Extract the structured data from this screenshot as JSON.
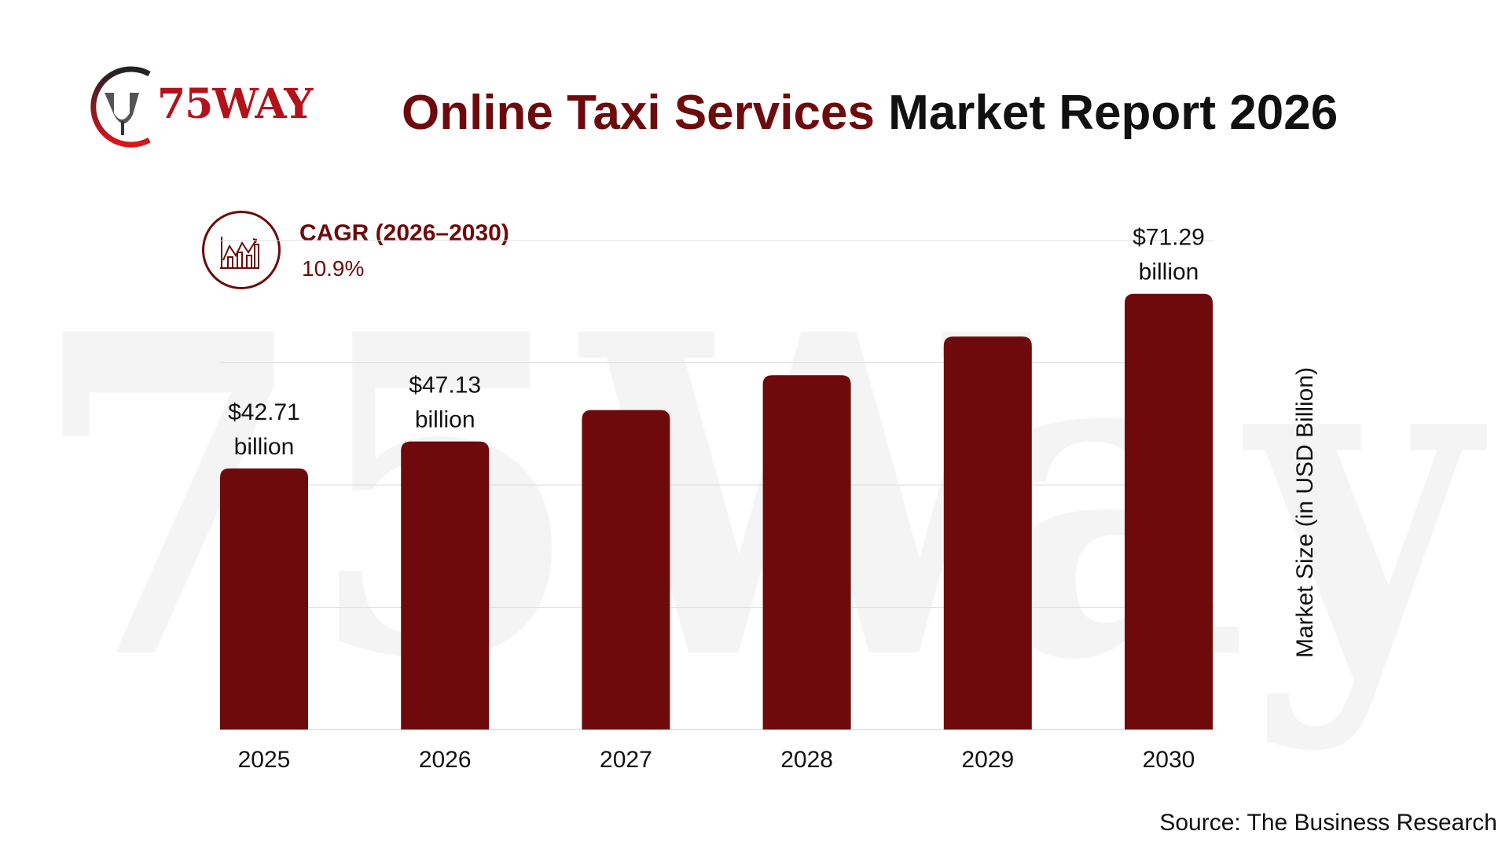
{
  "logo": {
    "text": "75WAY"
  },
  "watermark": "75Way",
  "header": {
    "title_accent": "Online Taxi Services",
    "title_rest": " Market Report 2026"
  },
  "cagr": {
    "label": "CAGR (2026–2030)",
    "value": "10.9%",
    "icon": "chart-growth-icon"
  },
  "source": "Source: The Business Research",
  "colors": {
    "bar": "#6e0a0b",
    "accent": "#6e0a0b",
    "grid": "#dddddd"
  },
  "chart_data": {
    "type": "bar",
    "title": "Online Taxi Services Market Report 2026",
    "categories": [
      "2025",
      "2026",
      "2027",
      "2028",
      "2029",
      "2030"
    ],
    "values": [
      42.71,
      47.13,
      52.27,
      57.97,
      64.29,
      71.29
    ],
    "data_labels": [
      [
        "$42.71",
        "billion"
      ],
      [
        "$47.13",
        "billion"
      ],
      null,
      null,
      null,
      [
        "$71.29",
        "billion"
      ]
    ],
    "xlabel": "",
    "ylabel": "Market Size (in USD Billion)",
    "ylim": [
      0,
      80
    ],
    "gridlines": [
      0,
      20,
      40,
      60,
      80
    ],
    "grid": true
  }
}
